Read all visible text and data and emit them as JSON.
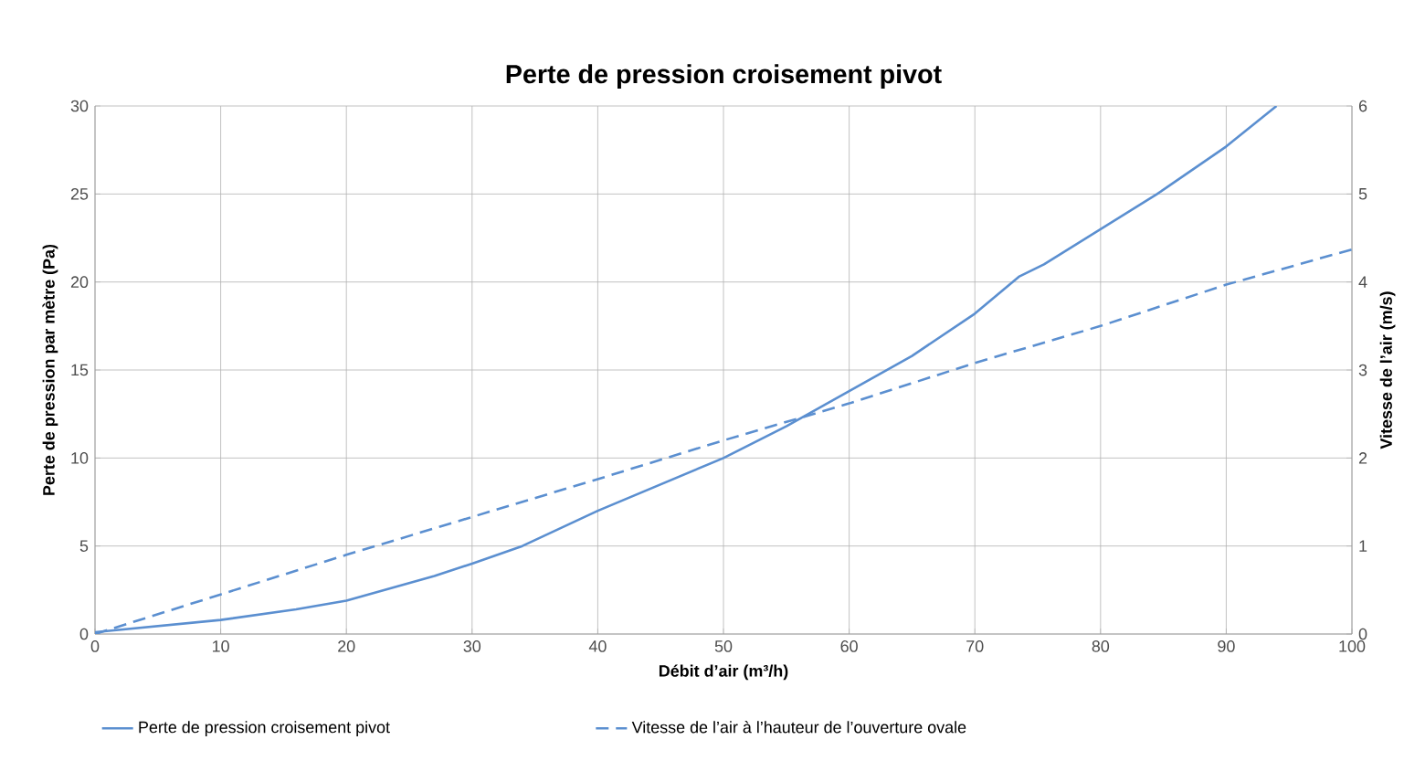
{
  "chart_data": {
    "type": "line",
    "title": "Perte de pression croisement pivot",
    "xlabel": "Débit d’air (m³/h)",
    "ylabel": "Perte de pression par mètre (Pa)",
    "y2label": "Vitesse de l’air (m/s)",
    "xlim": [
      0,
      100
    ],
    "xticks": [
      0,
      10,
      20,
      30,
      40,
      50,
      60,
      70,
      80,
      90,
      100
    ],
    "ylim": [
      0,
      30
    ],
    "yticks": [
      0,
      5,
      10,
      15,
      20,
      25,
      30
    ],
    "y2lim": [
      0,
      6
    ],
    "y2ticks": [
      0,
      1,
      2,
      3,
      4,
      5,
      6
    ],
    "grid": true,
    "legend": "bottom",
    "series": [
      {
        "name": "Perte de pression croisement pivot",
        "color": "#5b8fd0",
        "line_style": "solid",
        "x": [
          0,
          10,
          16,
          20,
          27,
          30,
          34,
          40,
          50,
          55,
          60,
          65,
          70,
          73.5,
          75.5,
          80,
          84.5,
          90,
          94
        ],
        "values": [
          0.1,
          0.8,
          1.4,
          1.9,
          3.3,
          4,
          5,
          7,
          10,
          11.8,
          13.8,
          15.8,
          18.2,
          20.3,
          21,
          23,
          25,
          27.7,
          30
        ]
      },
      {
        "name": "Vitesse de l’air à l’hauteur de l’ouverture ovale",
        "color": "#5b8fd0",
        "line_style": "dashed",
        "axis": "y2",
        "x": [
          0,
          10,
          20,
          30,
          40,
          50,
          60,
          70,
          80,
          90,
          100
        ],
        "values": [
          0,
          0.45,
          0.9,
          1.33,
          1.76,
          2.2,
          2.62,
          3.08,
          3.5,
          3.97,
          4.37
        ]
      }
    ]
  }
}
